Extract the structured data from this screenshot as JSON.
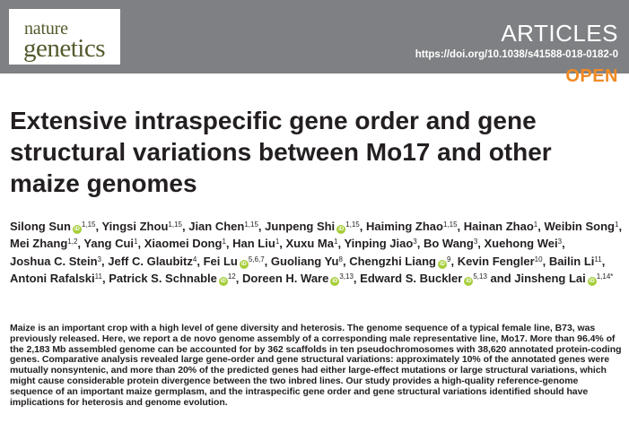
{
  "journal": {
    "logo_line1": "nature",
    "logo_line2": "genetics",
    "section": "ARTICLES",
    "doi": "https://doi.org/10.1038/s41588-018-0182-0",
    "access": "OPEN",
    "header_color": "#7f8083",
    "logo_color": "#555a2d",
    "open_color": "#f08a24"
  },
  "title": "Extensive intraspecific gene order and gene structural variations between Mo17 and other maize genomes",
  "authors": [
    {
      "name": "Silong Sun",
      "orcid": true,
      "aff": "1,15",
      "sep": ","
    },
    {
      "name": "Yingsi Zhou",
      "orcid": false,
      "aff": "1,15",
      "sep": ","
    },
    {
      "name": "Jian Chen",
      "orcid": false,
      "aff": "1,15",
      "sep": ","
    },
    {
      "name": "Junpeng Shi",
      "orcid": true,
      "aff": "1,15",
      "sep": ","
    },
    {
      "name": "Haiming Zhao",
      "orcid": false,
      "aff": "1,15",
      "sep": ","
    },
    {
      "name": "Hainan Zhao",
      "orcid": false,
      "aff": "1",
      "sep": ","
    },
    {
      "name": "Weibin Song",
      "orcid": false,
      "aff": "1",
      "sep": ","
    },
    {
      "name": "Mei Zhang",
      "orcid": false,
      "aff": "1,2",
      "sep": ","
    },
    {
      "name": "Yang Cui",
      "orcid": false,
      "aff": "1",
      "sep": ","
    },
    {
      "name": "Xiaomei Dong",
      "orcid": false,
      "aff": "1",
      "sep": ","
    },
    {
      "name": "Han Liu",
      "orcid": false,
      "aff": "1",
      "sep": ","
    },
    {
      "name": "Xuxu Ma",
      "orcid": false,
      "aff": "1",
      "sep": ","
    },
    {
      "name": "Yinping Jiao",
      "orcid": false,
      "aff": "3",
      "sep": ","
    },
    {
      "name": "Bo Wang",
      "orcid": false,
      "aff": "3",
      "sep": ","
    },
    {
      "name": "Xuehong Wei",
      "orcid": false,
      "aff": "3",
      "sep": ","
    },
    {
      "name": "Joshua C. Stein",
      "orcid": false,
      "aff": "3",
      "sep": ","
    },
    {
      "name": "Jeff C. Glaubitz",
      "orcid": false,
      "aff": "4",
      "sep": ","
    },
    {
      "name": "Fei Lu",
      "orcid": true,
      "aff": "5,6,7",
      "sep": ","
    },
    {
      "name": "Guoliang Yu",
      "orcid": false,
      "aff": "8",
      "sep": ","
    },
    {
      "name": "Chengzhi Liang",
      "orcid": true,
      "aff": "9",
      "sep": ","
    },
    {
      "name": "Kevin Fengler",
      "orcid": false,
      "aff": "10",
      "sep": ","
    },
    {
      "name": "Bailin Li",
      "orcid": false,
      "aff": "11",
      "sep": ","
    },
    {
      "name": "Antoni Rafalski",
      "orcid": false,
      "aff": "11",
      "sep": ","
    },
    {
      "name": "Patrick S. Schnable",
      "orcid": true,
      "aff": "12",
      "sep": ","
    },
    {
      "name": "Doreen H. Ware",
      "orcid": true,
      "aff": "3,13",
      "sep": ","
    },
    {
      "name": "Edward S. Buckler",
      "orcid": true,
      "aff": "5,13",
      "sep": " and"
    },
    {
      "name": "Jinsheng Lai",
      "orcid": true,
      "aff": "1,14*",
      "sep": ""
    }
  ],
  "abstract": "Maize is an important crop with a high level of gene diversity and heterosis. The genome sequence of a typical female line, B73, was previously released. Here, we report a de novo genome assembly of a corresponding male representative line, Mo17. More than 96.4% of the 2,183 Mb assembled genome can be accounted for by 362 scaffolds in ten pseudochromosomes with 38,620 annotated protein-coding genes. Comparative analysis revealed large gene-order and gene structural variations: approximately 10% of the annotated genes were mutually nonsyntenic, and more than 20% of the predicted genes had either large-effect mutations or large structural variations, which might cause considerable protein divergence between the two inbred lines. Our study provides a high-quality reference-genome sequence of an important maize germplasm, and the intraspecific gene order and gene structural variations identified should have implications for heterosis and genome evolution.",
  "icons": {
    "orcid": "orcid-icon"
  }
}
